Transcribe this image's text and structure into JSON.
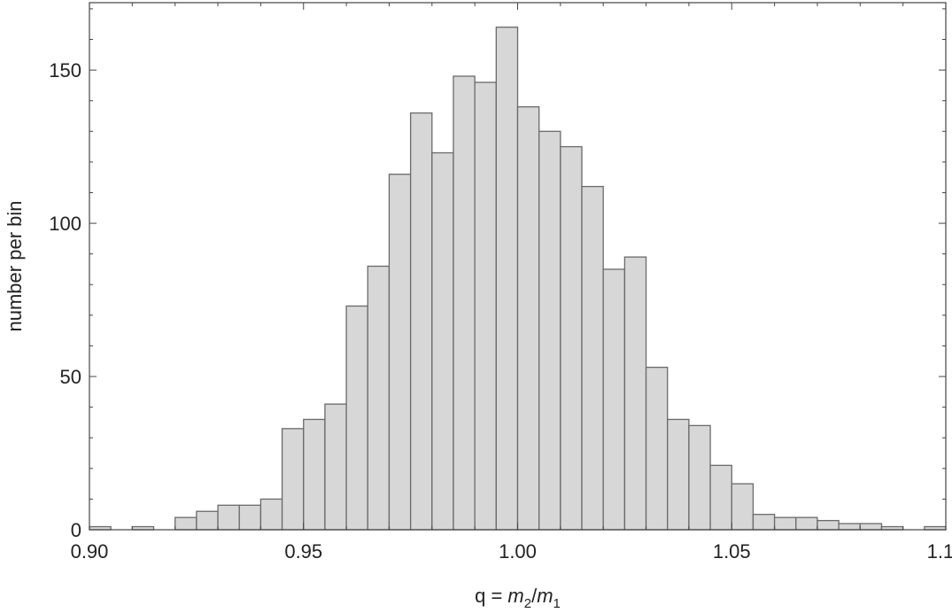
{
  "chart_data": {
    "type": "bar",
    "title": "",
    "xlabel": {
      "prefix": "q = ",
      "num_var": "m",
      "num_sub": "2",
      "slash": "/",
      "den_var": "m",
      "den_sub": "1"
    },
    "ylabel": "number per bin",
    "xlim": [
      0.9,
      1.1
    ],
    "ylim": [
      0,
      172
    ],
    "bin_width": 0.005,
    "bin_left_edges": [
      0.9,
      0.905,
      0.91,
      0.915,
      0.92,
      0.925,
      0.93,
      0.935,
      0.94,
      0.945,
      0.95,
      0.955,
      0.96,
      0.965,
      0.97,
      0.975,
      0.98,
      0.985,
      0.99,
      0.995,
      1.0,
      1.005,
      1.01,
      1.015,
      1.02,
      1.025,
      1.03,
      1.035,
      1.04,
      1.045,
      1.05,
      1.055,
      1.06,
      1.065,
      1.07,
      1.075,
      1.08,
      1.085,
      1.09,
      1.095
    ],
    "values": [
      1,
      0,
      1,
      0,
      4,
      6,
      8,
      8,
      10,
      33,
      36,
      41,
      73,
      86,
      116,
      136,
      123,
      148,
      146,
      164,
      138,
      130,
      125,
      112,
      85,
      89,
      53,
      36,
      34,
      21,
      15,
      5,
      4,
      4,
      3,
      2,
      2,
      1,
      0,
      1
    ],
    "xticks": [
      0.9,
      0.95,
      1.0,
      1.05,
      1.1
    ],
    "xtick_labels": [
      "0.90",
      "0.95",
      "1.00",
      "1.05",
      "1.10"
    ],
    "yticks": [
      0,
      50,
      100,
      150
    ],
    "ytick_labels": [
      "0",
      "50",
      "100",
      "150"
    ],
    "grid": false,
    "bar_fill": "#d7d7d7",
    "bar_stroke": "#6a6a6a"
  }
}
